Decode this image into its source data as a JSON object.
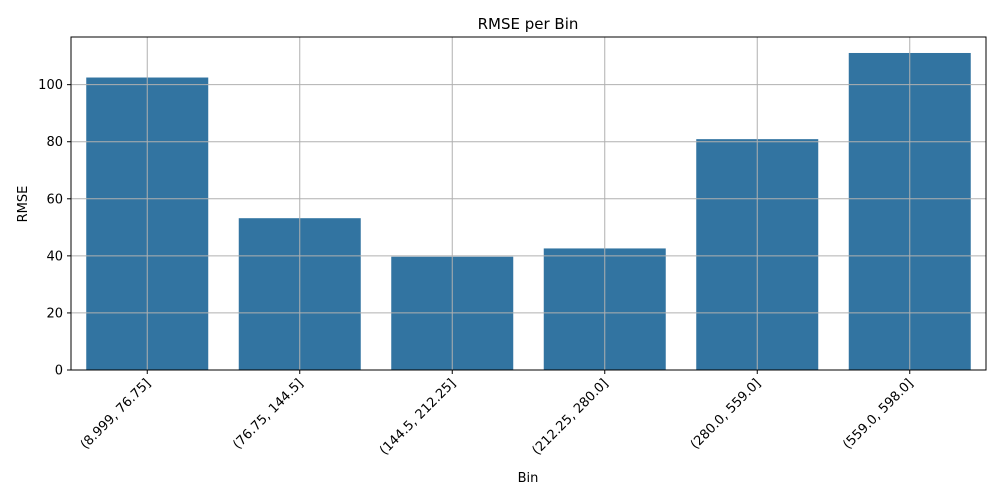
{
  "chart_data": {
    "type": "bar",
    "title": "RMSE per Bin",
    "xlabel": "Bin",
    "ylabel": "RMSE",
    "categories": [
      "(8.999, 76.75]",
      "(76.75, 144.5]",
      "(144.5, 212.25]",
      "(212.25, 280.0]",
      "(280.0, 559.0]",
      "(559.0, 598.0]"
    ],
    "values": [
      102.5,
      53.2,
      39.7,
      42.6,
      80.9,
      111.1
    ],
    "ylim": [
      0,
      116.7
    ],
    "yticks": [
      0,
      20,
      40,
      60,
      80,
      100
    ],
    "grid": true,
    "bar_color": "#3274a1"
  }
}
